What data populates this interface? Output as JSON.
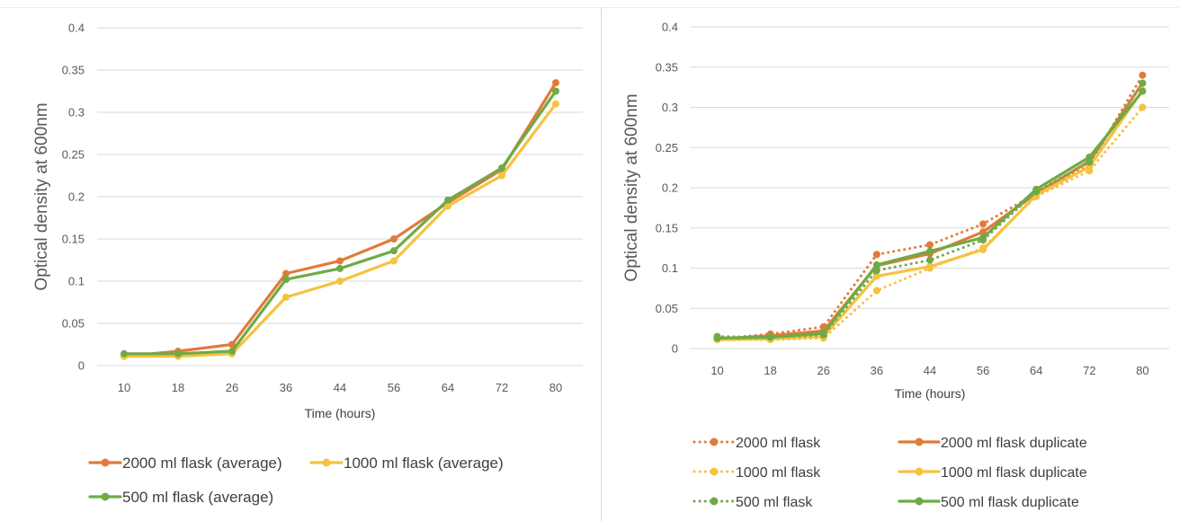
{
  "colors": {
    "orange": "#E07B39",
    "yellow": "#F5C242",
    "green": "#6FAA46",
    "grid": "#d9d9d9",
    "text": "#595959"
  },
  "chart_data": [
    {
      "type": "line",
      "ylabel": "Optical density at 600nm",
      "xlabel": "Time (hours)",
      "categories": [
        "10",
        "18",
        "26",
        "36",
        "44",
        "56",
        "64",
        "72",
        "80"
      ],
      "ylim": [
        0,
        0.4
      ],
      "yticks": [
        "0",
        "0.05",
        "0.1",
        "0.15",
        "0.2",
        "0.25",
        "0.3",
        "0.35",
        "0.4"
      ],
      "grid": true,
      "legend_position": "bottom",
      "series": [
        {
          "name": "2000 ml flask (average)",
          "color": "#E07B39",
          "style": "solid",
          "values": [
            0.011,
            0.017,
            0.025,
            0.109,
            0.124,
            0.15,
            0.193,
            0.232,
            0.335
          ]
        },
        {
          "name": "1000 ml flask (average)",
          "color": "#F5C242",
          "style": "solid",
          "values": [
            0.011,
            0.011,
            0.014,
            0.081,
            0.1,
            0.124,
            0.189,
            0.225,
            0.31
          ]
        },
        {
          "name": "500 ml flask (average)",
          "color": "#6FAA46",
          "style": "solid",
          "values": [
            0.014,
            0.014,
            0.017,
            0.102,
            0.115,
            0.136,
            0.196,
            0.234,
            0.325
          ]
        }
      ]
    },
    {
      "type": "line",
      "ylabel": "Optical density at 600nm",
      "xlabel": "Time (hours)",
      "categories": [
        "10",
        "18",
        "26",
        "36",
        "44",
        "56",
        "64",
        "72",
        "80"
      ],
      "ylim": [
        0,
        0.4
      ],
      "yticks": [
        "0",
        "0.05",
        "0.1",
        "0.15",
        "0.2",
        "0.25",
        "0.3",
        "0.35",
        "0.4"
      ],
      "grid": true,
      "legend_position": "bottom",
      "series": [
        {
          "name": "2000 ml flask",
          "color": "#E07B39",
          "style": "dotted",
          "values": [
            0.012,
            0.018,
            0.027,
            0.117,
            0.129,
            0.155,
            0.193,
            0.228,
            0.34
          ]
        },
        {
          "name": "2000 ml flask duplicate",
          "color": "#E07B39",
          "style": "solid",
          "values": [
            0.012,
            0.016,
            0.022,
            0.103,
            0.118,
            0.145,
            0.193,
            0.233,
            0.33
          ]
        },
        {
          "name": "1000 ml flask",
          "color": "#F5C242",
          "style": "dotted",
          "values": [
            0.011,
            0.011,
            0.013,
            0.072,
            0.1,
            0.125,
            0.189,
            0.221,
            0.3
          ]
        },
        {
          "name": "1000 ml flask duplicate",
          "color": "#F5C242",
          "style": "solid",
          "values": [
            0.011,
            0.012,
            0.015,
            0.09,
            0.102,
            0.123,
            0.191,
            0.226,
            0.321
          ]
        },
        {
          "name": "500 ml flask",
          "color": "#6FAA46",
          "style": "dotted",
          "values": [
            0.015,
            0.014,
            0.017,
            0.097,
            0.11,
            0.135,
            0.195,
            0.232,
            0.33
          ]
        },
        {
          "name": "500 ml flask duplicate",
          "color": "#6FAA46",
          "style": "solid",
          "values": [
            0.013,
            0.014,
            0.019,
            0.104,
            0.121,
            0.138,
            0.198,
            0.238,
            0.32
          ]
        }
      ]
    }
  ]
}
